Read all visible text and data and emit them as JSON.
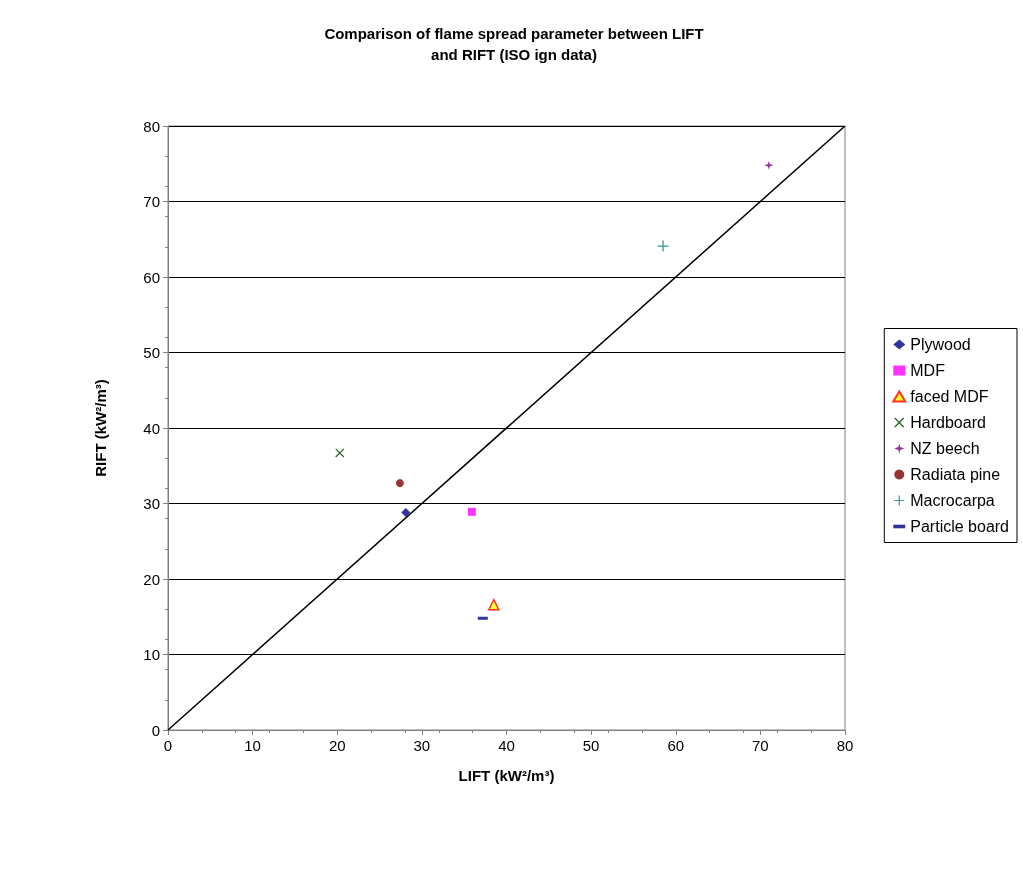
{
  "chart_data": {
    "type": "scatter",
    "title": "Comparison of flame spread parameter between LIFT\nand RIFT (ISO ign data)",
    "xlabel": "LIFT (kW²/m³)",
    "ylabel": "RIFT (kW²/m³)",
    "xlim": [
      0,
      80
    ],
    "xticks": [
      0,
      10,
      20,
      30,
      40,
      50,
      60,
      70,
      80
    ],
    "ylim": [
      0,
      80
    ],
    "yticks": [
      0,
      10,
      20,
      30,
      40,
      50,
      60,
      70,
      80
    ],
    "grid": "y",
    "legend": "right",
    "series": [
      {
        "name": "Plywood",
        "color": "#000080",
        "marker": "diamond",
        "x": [
          28.1
        ],
        "values": [
          28.8
        ]
      },
      {
        "name": "MDF",
        "color": "#ff00ff",
        "marker": "square",
        "x": [
          35.9
        ],
        "values": [
          28.9
        ]
      },
      {
        "name": "faced MDF",
        "color": "#ff0000",
        "marker": "triangle",
        "x": [
          38.5
        ],
        "values": [
          16.6
        ]
      },
      {
        "name": "Hardboard",
        "color": "#004000",
        "marker": "cross",
        "x": [
          20.3
        ],
        "values": [
          36.7
        ]
      },
      {
        "name": "NZ beech",
        "color": "#800080",
        "marker": "star",
        "x": [
          71.0
        ],
        "values": [
          74.8
        ]
      },
      {
        "name": "Radiata pine",
        "color": "#800000",
        "marker": "circle",
        "x": [
          27.4
        ],
        "values": [
          32.7
        ]
      },
      {
        "name": "Macrocarpa",
        "color": "#008080",
        "marker": "plus",
        "x": [
          58.5
        ],
        "values": [
          64.1
        ]
      },
      {
        "name": "Particle board",
        "color": "#000080",
        "x": [
          37.2
        ],
        "values": [
          14.8
        ]
      },
      {
        "type": "line",
        "color": "#000000",
        "marker": "none",
        "x": [
          0,
          80
        ],
        "values": [
          0,
          80
        ]
      }
    ]
  }
}
